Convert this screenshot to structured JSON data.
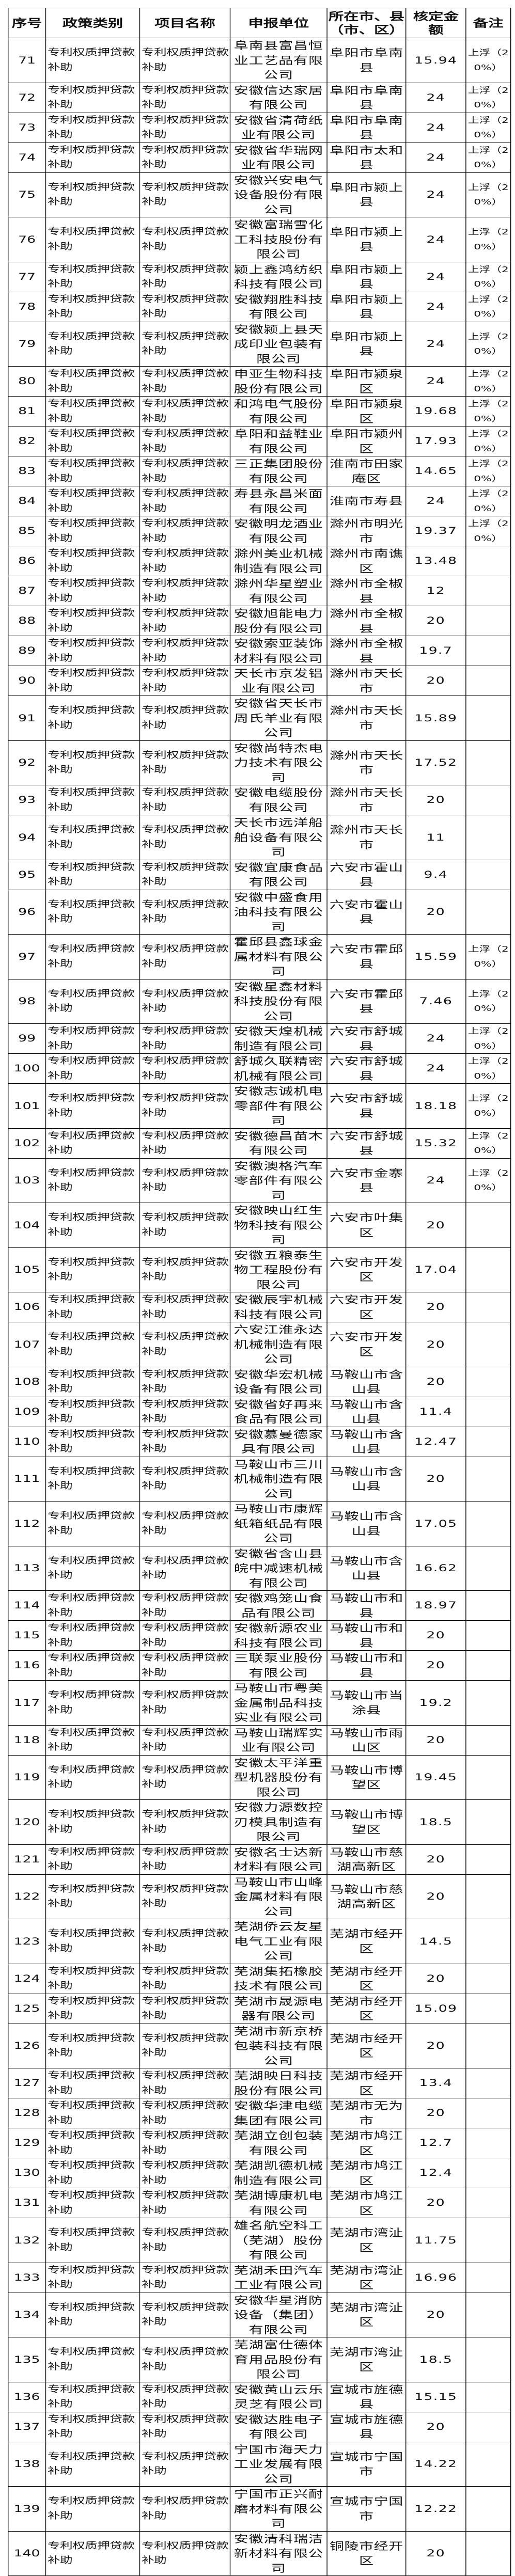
{
  "table": {
    "headers": [
      "序号",
      "政策类别",
      "项目名称",
      "申报单位",
      "所在市、县（市、区）",
      "核定金额",
      "备注"
    ],
    "rows": [
      {
        "no": "71",
        "policy": "专利权质押贷款补助",
        "project": "专利权质押贷款补助",
        "unit": "阜南县富昌恒业工艺品有限公司",
        "location": "阜阳市阜南县",
        "amount": "15.94",
        "note": "上浮（20%）"
      },
      {
        "no": "72",
        "policy": "专利权质押贷款补助",
        "project": "专利权质押贷款补助",
        "unit": "安徽信达家居有限公司",
        "location": "阜阳市阜南县",
        "amount": "24",
        "note": "上浮（20%）"
      },
      {
        "no": "73",
        "policy": "专利权质押贷款补助",
        "project": "专利权质押贷款补助",
        "unit": "安徽省清荷纸业有限公司",
        "location": "阜阳市阜南县",
        "amount": "24",
        "note": "上浮（20%）"
      },
      {
        "no": "74",
        "policy": "专利权质押贷款补助",
        "project": "专利权质押贷款补助",
        "unit": "安徽省华瑞网业有限公司",
        "location": "阜阳市太和县",
        "amount": "24",
        "note": "上浮（20%）"
      },
      {
        "no": "75",
        "policy": "专利权质押贷款补助",
        "project": "专利权质押贷款补助",
        "unit": "安徽兴安电气设备股份有限公司",
        "location": "阜阳市颍上县",
        "amount": "24",
        "note": "上浮（20%）"
      },
      {
        "no": "76",
        "policy": "专利权质押贷款补助",
        "project": "专利权质押贷款补助",
        "unit": "安徽富瑞雪化工科技股份有限公司",
        "location": "阜阳市颍上县",
        "amount": "24",
        "note": "上浮（20%）"
      },
      {
        "no": "77",
        "policy": "专利权质押贷款补助",
        "project": "专利权质押贷款补助",
        "unit": "颍上鑫鸿纺织科技有限公司",
        "location": "阜阳市颍上县",
        "amount": "24",
        "note": "上浮（20%）"
      },
      {
        "no": "78",
        "policy": "专利权质押贷款补助",
        "project": "专利权质押贷款补助",
        "unit": "安徽翔胜科技有限公司",
        "location": "阜阳市颍上县",
        "amount": "24",
        "note": "上浮（20%）"
      },
      {
        "no": "79",
        "policy": "专利权质押贷款补助",
        "project": "专利权质押贷款补助",
        "unit": "安徽颍上县天成印业包装有限公司",
        "location": "阜阳市颍上县",
        "amount": "24",
        "note": "上浮（20%）"
      },
      {
        "no": "80",
        "policy": "专利权质押贷款补助",
        "project": "专利权质押贷款补助",
        "unit": "申亚生物科技股份有限公司",
        "location": "阜阳市颍泉区",
        "amount": "24",
        "note": "上浮（20%）"
      },
      {
        "no": "81",
        "policy": "专利权质押贷款补助",
        "project": "专利权质押贷款补助",
        "unit": "和鸿电气股份有限公司",
        "location": "阜阳市颍泉区",
        "amount": "19.68",
        "note": "上浮（20%）"
      },
      {
        "no": "82",
        "policy": "专利权质押贷款补助",
        "project": "专利权质押贷款补助",
        "unit": "阜阳和益鞋业有限公司",
        "location": "阜阳市颍州区",
        "amount": "17.93",
        "note": "上浮（20%）"
      },
      {
        "no": "83",
        "policy": "专利权质押贷款补助",
        "project": "专利权质押贷款补助",
        "unit": "三正集团股份有限公司",
        "location": "淮南市田家庵区",
        "amount": "14.65",
        "note": "上浮（20%）"
      },
      {
        "no": "84",
        "policy": "专利权质押贷款补助",
        "project": "专利权质押贷款补助",
        "unit": "寿县永昌米面有限公司",
        "location": "淮南市寿县",
        "amount": "24",
        "note": "上浮（20%）"
      },
      {
        "no": "85",
        "policy": "专利权质押贷款补助",
        "project": "专利权质押贷款补助",
        "unit": "安徽明龙酒业有限公司",
        "location": "滁州市明光市",
        "amount": "19.37",
        "note": "上浮（20%）"
      },
      {
        "no": "86",
        "policy": "专利权质押贷款补助",
        "project": "专利权质押贷款补助",
        "unit": "滁州美业机械制造有限公司",
        "location": "滁州市南谯区",
        "amount": "13.48",
        "note": ""
      },
      {
        "no": "87",
        "policy": "专利权质押贷款补助",
        "project": "专利权质押贷款补助",
        "unit": "滁州华星塑业有限公司",
        "location": "滁州市全椒县",
        "amount": "12",
        "note": ""
      },
      {
        "no": "88",
        "policy": "专利权质押贷款补助",
        "project": "专利权质押贷款补助",
        "unit": "安徽旭能电力股份有限公司",
        "location": "滁州市全椒县",
        "amount": "20",
        "note": ""
      },
      {
        "no": "89",
        "policy": "专利权质押贷款补助",
        "project": "专利权质押贷款补助",
        "unit": "安徽索亚装饰材料有限公司",
        "location": "滁州市全椒县",
        "amount": "19.7",
        "note": ""
      },
      {
        "no": "90",
        "policy": "专利权质押贷款补助",
        "project": "专利权质押贷款补助",
        "unit": "天长市京发铝业有限公司",
        "location": "滁州市天长市",
        "amount": "20",
        "note": ""
      },
      {
        "no": "91",
        "policy": "专利权质押贷款补助",
        "project": "专利权质押贷款补助",
        "unit": "安徽省天长市周氏羊业有限公司",
        "location": "滁州市天长市",
        "amount": "15.89",
        "note": ""
      },
      {
        "no": "92",
        "policy": "专利权质押贷款补助",
        "project": "专利权质押贷款补助",
        "unit": "安徽尚特杰电力技术有限公司",
        "location": "滁州市天长市",
        "amount": "17.52",
        "note": ""
      },
      {
        "no": "93",
        "policy": "专利权质押贷款补助",
        "project": "专利权质押贷款补助",
        "unit": "安徽电缆股份有限公司",
        "location": "滁州市天长市",
        "amount": "20",
        "note": ""
      },
      {
        "no": "94",
        "policy": "专利权质押贷款补助",
        "project": "专利权质押贷款补助",
        "unit": "天长市远洋船舶设备有限公司",
        "location": "滁州市天长市",
        "amount": "11",
        "note": ""
      },
      {
        "no": "95",
        "policy": "专利权质押贷款补助",
        "project": "专利权质押贷款补助",
        "unit": "安徽宜康食品有限公司",
        "location": "六安市霍山县",
        "amount": "9.4",
        "note": ""
      },
      {
        "no": "96",
        "policy": "专利权质押贷款补助",
        "project": "专利权质押贷款补助",
        "unit": "安徽中盛食用油科技有限公司",
        "location": "六安市霍山县",
        "amount": "20",
        "note": ""
      },
      {
        "no": "97",
        "policy": "专利权质押贷款补助",
        "project": "专利权质押贷款补助",
        "unit": "霍邱县鑫球金属材料有限公司",
        "location": "六安市霍邱县",
        "amount": "15.59",
        "note": "上浮（20%）"
      },
      {
        "no": "98",
        "policy": "专利权质押贷款补助",
        "project": "专利权质押贷款补助",
        "unit": "安徽星鑫材料科技股份有限公司",
        "location": "六安市霍邱县",
        "amount": "7.46",
        "note": "上浮（20%）"
      },
      {
        "no": "99",
        "policy": "专利权质押贷款补助",
        "project": "专利权质押贷款补助",
        "unit": "安徽天煌机械制造有限公司",
        "location": "六安市舒城县",
        "amount": "24",
        "note": "上浮（20%）"
      },
      {
        "no": "100",
        "policy": "专利权质押贷款补助",
        "project": "专利权质押贷款补助",
        "unit": "舒城久联精密机械有限公司",
        "location": "六安市舒城县",
        "amount": "24",
        "note": "上浮（20%）"
      },
      {
        "no": "101",
        "policy": "专利权质押贷款补助",
        "project": "专利权质押贷款补助",
        "unit": "安徽志诚机电零部件有限公司",
        "location": "六安市舒城县",
        "amount": "18.18",
        "note": "上浮（20%）"
      },
      {
        "no": "102",
        "policy": "专利权质押贷款补助",
        "project": "专利权质押贷款补助",
        "unit": "安徽德昌苗木有限公司",
        "location": "六安市舒城县",
        "amount": "15.32",
        "note": "上浮（20%）"
      },
      {
        "no": "103",
        "policy": "专利权质押贷款补助",
        "project": "专利权质押贷款补助",
        "unit": "安徽澳格汽车零部件有限公司",
        "location": "六安市金寨县",
        "amount": "24",
        "note": "上浮（20%）"
      },
      {
        "no": "104",
        "policy": "专利权质押贷款补助",
        "project": "专利权质押贷款补助",
        "unit": "安徽映山红生物科技有限公司",
        "location": "六安市叶集区",
        "amount": "20",
        "note": ""
      },
      {
        "no": "105",
        "policy": "专利权质押贷款补助",
        "project": "专利权质押贷款补助",
        "unit": "安徽五粮泰生物工程股份有限公司",
        "location": "六安市开发区",
        "amount": "17.04",
        "note": ""
      },
      {
        "no": "106",
        "policy": "专利权质押贷款补助",
        "project": "专利权质押贷款补助",
        "unit": "安徽辰宇机械科技有限公司",
        "location": "六安市开发区",
        "amount": "20",
        "note": ""
      },
      {
        "no": "107",
        "policy": "专利权质押贷款补助",
        "project": "专利权质押贷款补助",
        "unit": "六安江淮永达机械制造有限公司",
        "location": "六安市开发区",
        "amount": "20",
        "note": ""
      },
      {
        "no": "108",
        "policy": "专利权质押贷款补助",
        "project": "专利权质押贷款补助",
        "unit": "安徽华宏机械设备有限公司",
        "location": "马鞍山市含山县",
        "amount": "20",
        "note": ""
      },
      {
        "no": "109",
        "policy": "专利权质押贷款补助",
        "project": "专利权质押贷款补助",
        "unit": "安徽省好再来食品有限公司",
        "location": "马鞍山市含山县",
        "amount": "11.4",
        "note": ""
      },
      {
        "no": "110",
        "policy": "专利权质押贷款补助",
        "project": "专利权质押贷款补助",
        "unit": "安徽慕曼德家具有限公司",
        "location": "马鞍山市含山县",
        "amount": "12.47",
        "note": ""
      },
      {
        "no": "111",
        "policy": "专利权质押贷款补助",
        "project": "专利权质押贷款补助",
        "unit": "马鞍山市三川机械制造有限公司",
        "location": "马鞍山市含山县",
        "amount": "20",
        "note": ""
      },
      {
        "no": "112",
        "policy": "专利权质押贷款补助",
        "project": "专利权质押贷款补助",
        "unit": "马鞍山市康辉纸箱纸品有限公司",
        "location": "马鞍山市含山县",
        "amount": "17.05",
        "note": ""
      },
      {
        "no": "113",
        "policy": "专利权质押贷款补助",
        "project": "专利权质押贷款补助",
        "unit": "安徽省含山县皖中减速机械有限公司",
        "location": "马鞍山市含山县",
        "amount": "16.62",
        "note": ""
      },
      {
        "no": "114",
        "policy": "专利权质押贷款补助",
        "project": "专利权质押贷款补助",
        "unit": "安徽鸡笼山食品有限公司",
        "location": "马鞍山市和县",
        "amount": "18.97",
        "note": ""
      },
      {
        "no": "115",
        "policy": "专利权质押贷款补助",
        "project": "专利权质押贷款补助",
        "unit": "安徽新源农业科技有限公司",
        "location": "马鞍山市和县",
        "amount": "20",
        "note": ""
      },
      {
        "no": "116",
        "policy": "专利权质押贷款补助",
        "project": "专利权质押贷款补助",
        "unit": "三联泵业股份有限公司",
        "location": "马鞍山市和县",
        "amount": "20",
        "note": ""
      },
      {
        "no": "117",
        "policy": "专利权质押贷款补助",
        "project": "专利权质押贷款补助",
        "unit": "马鞍山市粤美金属制品科技实业有限公司",
        "location": "马鞍山市当涂县",
        "amount": "19.2",
        "note": ""
      },
      {
        "no": "118",
        "policy": "专利权质押贷款补助",
        "project": "专利权质押贷款补助",
        "unit": "马鞍山瑞辉实业有限公司",
        "location": "马鞍山市雨山区",
        "amount": "20",
        "note": ""
      },
      {
        "no": "119",
        "policy": "专利权质押贷款补助",
        "project": "专利权质押贷款补助",
        "unit": "安徽太平洋重型机器股份有限公司",
        "location": "马鞍山市博望区",
        "amount": "19.45",
        "note": ""
      },
      {
        "no": "120",
        "policy": "专利权质押贷款补助",
        "project": "专利权质押贷款补助",
        "unit": "安徽力源数控刃模具制造有限公司",
        "location": "马鞍山市博望区",
        "amount": "18.5",
        "note": ""
      },
      {
        "no": "121",
        "policy": "专利权质押贷款补助",
        "project": "专利权质押贷款补助",
        "unit": "安徽名士达新材料有限公司",
        "location": "马鞍山市慈湖高新区",
        "amount": "20",
        "note": ""
      },
      {
        "no": "122",
        "policy": "专利权质押贷款补助",
        "project": "专利权质押贷款补助",
        "unit": "马鞍山市山峰金属材料有限公司",
        "location": "马鞍山市慈湖高新区",
        "amount": "20",
        "note": ""
      },
      {
        "no": "123",
        "policy": "专利权质押贷款补助",
        "project": "专利权质押贷款补助",
        "unit": "芜湖侨云友星电气工业有限公司",
        "location": "芜湖市经开区",
        "amount": "14.5",
        "note": ""
      },
      {
        "no": "124",
        "policy": "专利权质押贷款补助",
        "project": "专利权质押贷款补助",
        "unit": "芜湖集拓橡胶技术有限公司",
        "location": "芜湖市经开区",
        "amount": "20",
        "note": ""
      },
      {
        "no": "125",
        "policy": "专利权质押贷款补助",
        "project": "专利权质押贷款补助",
        "unit": "芜湖市晟源电器有限公司",
        "location": "芜湖市经开区",
        "amount": "15.09",
        "note": ""
      },
      {
        "no": "126",
        "policy": "专利权质押贷款补助",
        "project": "专利权质押贷款补助",
        "unit": "芜湖市新京桥包装科技有限公司",
        "location": "芜湖市经开区",
        "amount": "20",
        "note": ""
      },
      {
        "no": "127",
        "policy": "专利权质押贷款补助",
        "project": "专利权质押贷款补助",
        "unit": "芜湖映日科技股份有限公司",
        "location": "芜湖市经开区",
        "amount": "13.4",
        "note": ""
      },
      {
        "no": "128",
        "policy": "专利权质押贷款补助",
        "project": "专利权质押贷款补助",
        "unit": "安徽华津电缆集团有限公司",
        "location": "芜湖市无为市",
        "amount": "20",
        "note": ""
      },
      {
        "no": "129",
        "policy": "专利权质押贷款补助",
        "project": "专利权质押贷款补助",
        "unit": "芜湖立创包装有限公司",
        "location": "芜湖市鸠江区",
        "amount": "12.7",
        "note": ""
      },
      {
        "no": "130",
        "policy": "专利权质押贷款补助",
        "project": "专利权质押贷款补助",
        "unit": "芜湖凯德机械制造有限公司",
        "location": "芜湖市鸠江区",
        "amount": "12.4",
        "note": ""
      },
      {
        "no": "131",
        "policy": "专利权质押贷款补助",
        "project": "专利权质押贷款补助",
        "unit": "芜湖博康机电有限公司",
        "location": "芜湖市鸠江区",
        "amount": "20",
        "note": ""
      },
      {
        "no": "132",
        "policy": "专利权质押贷款补助",
        "project": "专利权质押贷款补助",
        "unit": "雄名航空科工（芜湖）股份有限公司",
        "location": "芜湖市湾沚区",
        "amount": "11.75",
        "note": ""
      },
      {
        "no": "133",
        "policy": "专利权质押贷款补助",
        "project": "专利权质押贷款补助",
        "unit": "芜湖禾田汽车工业有限公司",
        "location": "芜湖市湾沚区",
        "amount": "16.96",
        "note": ""
      },
      {
        "no": "134",
        "policy": "专利权质押贷款补助",
        "project": "专利权质押贷款补助",
        "unit": "安徽华星消防设备（集团）有限公司",
        "location": "芜湖市湾沚区",
        "amount": "20",
        "note": ""
      },
      {
        "no": "135",
        "policy": "专利权质押贷款补助",
        "project": "专利权质押贷款补助",
        "unit": "芜湖富仕德体育用品股份有限公司",
        "location": "芜湖市湾沚区",
        "amount": "18.5",
        "note": ""
      },
      {
        "no": "136",
        "policy": "专利权质押贷款补助",
        "project": "专利权质押贷款补助",
        "unit": "安徽黄山云乐灵芝有限公司",
        "location": "宣城市旌德县",
        "amount": "15.15",
        "note": ""
      },
      {
        "no": "137",
        "policy": "专利权质押贷款补助",
        "project": "专利权质押贷款补助",
        "unit": "安徽达胜电子有限公司",
        "location": "宣城市旌德县",
        "amount": "20",
        "note": ""
      },
      {
        "no": "138",
        "policy": "专利权质押贷款补助",
        "project": "专利权质押贷款补助",
        "unit": "宁国市海天力工业发展有限公司",
        "location": "宣城市宁国市",
        "amount": "14.22",
        "note": ""
      },
      {
        "no": "139",
        "policy": "专利权质押贷款补助",
        "project": "专利权质押贷款补助",
        "unit": "宁国市正兴耐磨材料有限公司",
        "location": "宣城市宁国市",
        "amount": "12.22",
        "note": ""
      },
      {
        "no": "140",
        "policy": "专利权质押贷款补助",
        "project": "专利权质押贷款补助",
        "unit": "安徽清科瑞洁新材料有限公司",
        "location": "铜陵市经开区",
        "amount": "20",
        "note": ""
      }
    ]
  }
}
